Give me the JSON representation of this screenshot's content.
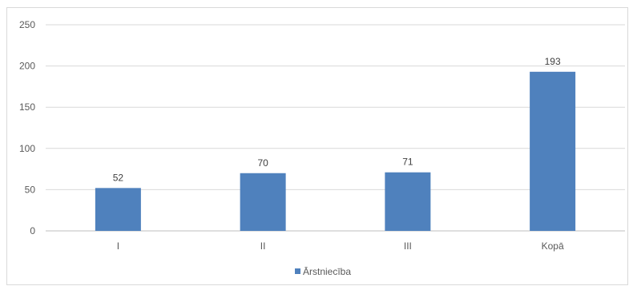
{
  "chart_data": {
    "type": "bar",
    "title": "",
    "xlabel": "",
    "ylabel": "",
    "categories": [
      "I",
      "II",
      "III",
      "Kopā"
    ],
    "series": [
      {
        "name": "Ārstniecība",
        "values": [
          52,
          70,
          71,
          193
        ],
        "color": "#4f81bd"
      }
    ],
    "ylim": [
      0,
      250
    ],
    "yticks": [
      0,
      50,
      100,
      150,
      200,
      250
    ],
    "grid": true,
    "data_labels": true,
    "legend_position": "bottom"
  }
}
